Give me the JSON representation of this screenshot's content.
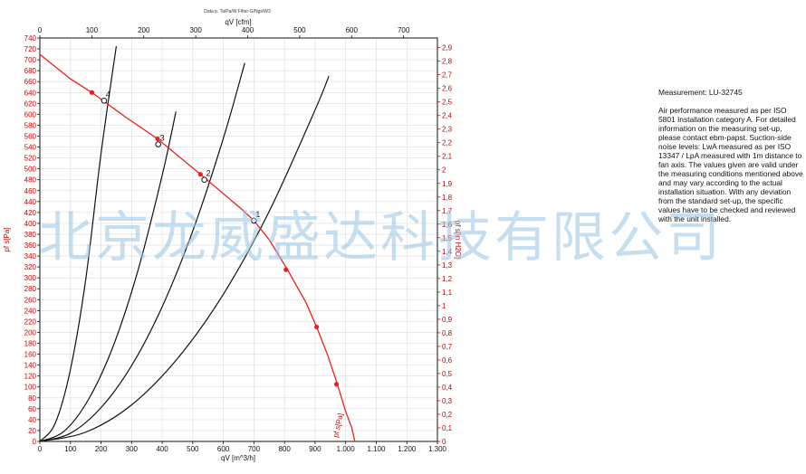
{
  "chart_data": {
    "type": "line",
    "title": "",
    "top_caption": "Data p. Ta/Pa/W Filter-G/Ngs/W3",
    "xlabel": "qV [m^3/h]",
    "x2label": "qV [cfm]",
    "ylabel": "pf s[Pa]",
    "y2label": "pf s[in H2O]",
    "xlim": [
      0,
      1300
    ],
    "ylim": [
      0,
      740
    ],
    "x_ticks": [
      "0",
      "100",
      "200",
      "300",
      "400",
      "500",
      "600",
      "700",
      "800",
      "900",
      "1.000",
      "1.100",
      "1.200",
      "1.300"
    ],
    "x2_ticks": [
      "0",
      "100",
      "200",
      "300",
      "400",
      "500",
      "600",
      "700"
    ],
    "y_ticks": [
      "0",
      "20",
      "40",
      "60",
      "80",
      "100",
      "120",
      "140",
      "160",
      "180",
      "200",
      "220",
      "240",
      "260",
      "280",
      "300",
      "320",
      "340",
      "360",
      "380",
      "400",
      "420",
      "440",
      "460",
      "480",
      "500",
      "520",
      "540",
      "560",
      "580",
      "600",
      "620",
      "640",
      "660",
      "680",
      "700",
      "720",
      "740"
    ],
    "y2_ticks": [
      "0",
      "0,1",
      "0,2",
      "0,3",
      "0,4",
      "0,5",
      "0,6",
      "0,7",
      "0,8",
      "0,9",
      "1",
      "1,1",
      "1,2",
      "1,3",
      "1,4",
      "1,5",
      "1,6",
      "1,7",
      "1,8",
      "1,9",
      "2",
      "2,1",
      "2,2",
      "2,3",
      "2,4",
      "2,5",
      "2,6",
      "2,7",
      "2,8",
      "2,9"
    ],
    "fan_curve": {
      "name": "pf s[Pa]",
      "color": "#e8201c",
      "x": [
        0,
        100,
        170,
        280,
        385,
        525,
        660,
        700,
        750,
        810,
        870,
        905,
        940,
        970,
        1000,
        1020,
        1030
      ],
      "y": [
        710,
        665,
        640,
        595,
        555,
        490,
        426,
        405,
        370,
        315,
        255,
        210,
        160,
        110,
        55,
        25,
        0
      ],
      "markers_x": [
        170,
        385,
        525,
        805,
        905,
        970
      ],
      "markers_y": [
        640,
        555,
        490,
        315,
        210,
        105
      ]
    },
    "system_curves": [
      {
        "label": "4",
        "x": [
          0,
          50,
          100,
          150,
          200,
          250
        ],
        "y": [
          0,
          33,
          132,
          297,
          528,
          725
        ]
      },
      {
        "label": "3",
        "x": [
          0,
          80,
          160,
          240,
          320,
          400,
          445
        ],
        "y": [
          0,
          19,
          78,
          175,
          312,
          488,
          605
        ]
      },
      {
        "label": "2",
        "x": [
          0,
          100,
          200,
          300,
          400,
          500,
          600,
          670
        ],
        "y": [
          0,
          15,
          62,
          139,
          247,
          386,
          556,
          694
        ]
      },
      {
        "label": "1",
        "x": [
          0,
          150,
          300,
          450,
          600,
          750,
          900,
          945
        ],
        "y": [
          0,
          17,
          67,
          152,
          270,
          422,
          608,
          670
        ]
      }
    ],
    "operating_points": [
      {
        "label": "4",
        "x": 210,
        "y": 625
      },
      {
        "label": "3",
        "x": 387,
        "y": 545
      },
      {
        "label": "2",
        "x": 538,
        "y": 480
      },
      {
        "label": "1",
        "x": 700,
        "y": 405
      }
    ],
    "colors": {
      "fan": "#e8201c",
      "system": "#111111",
      "grid": "#dcdcdc"
    },
    "grid": true
  },
  "notes": {
    "title": "Measurement: LU-32745",
    "body": "Air performance measured as per ISO 5801 Installation category A. For detailed information on the measuring set-up, please contact ebm-papst. Suction-side noise levels: LwA measured as per ISO 13347 / LpA measured with 1m distance to fan axis. The values given are valid under the measuring conditions mentioned above and may vary according to the actual installation situation. With any deviation from the standard set-up, the specific values have to be checked and reviewed with the unit installed."
  },
  "watermark": "北京龙威盛达科技有限公司"
}
